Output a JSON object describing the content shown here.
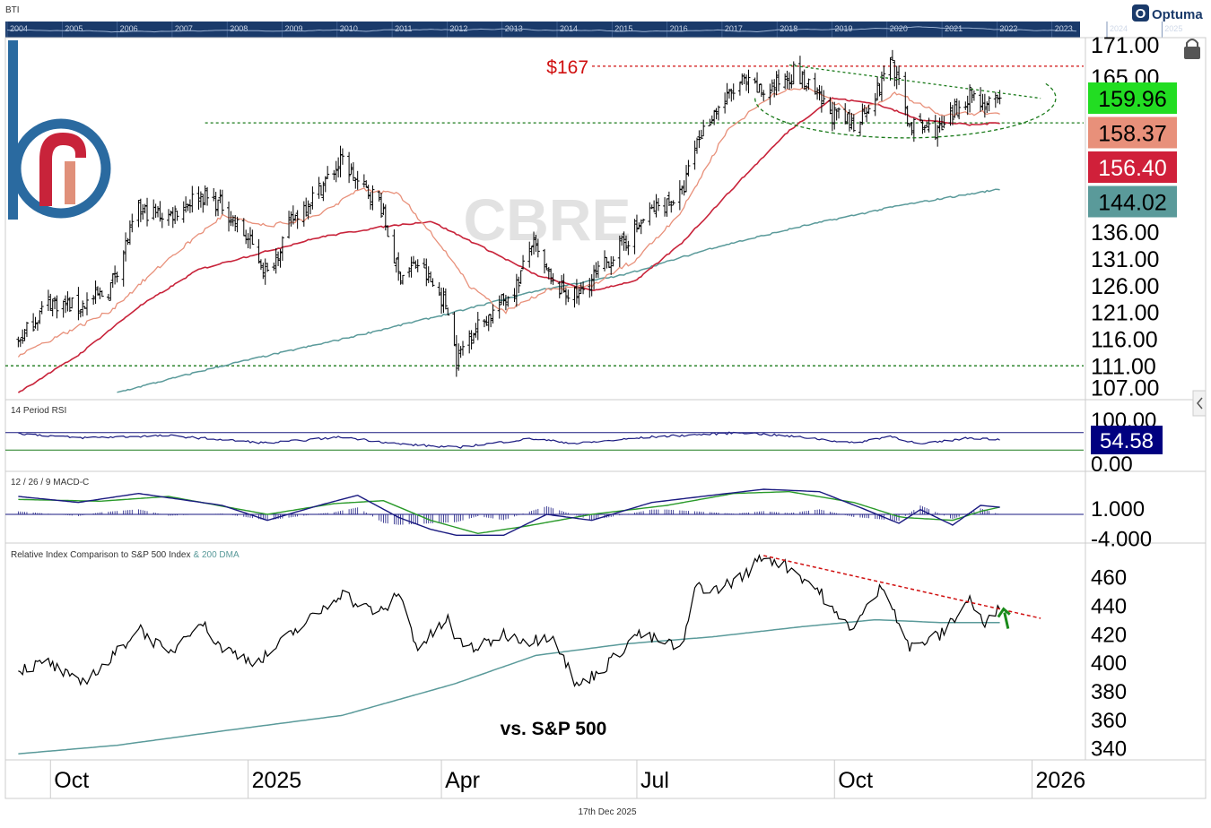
{
  "header": {
    "ticker_code": "BTI",
    "brand": "Optuma"
  },
  "timeline": {
    "years": [
      "2004",
      "2005",
      "2006",
      "2007",
      "2008",
      "2009",
      "2010",
      "2011",
      "2012",
      "2013",
      "2014",
      "2015",
      "2016",
      "2017",
      "2018",
      "2019",
      "2020",
      "2021",
      "2022",
      "2023",
      "2024",
      "2025"
    ]
  },
  "watermark": "CBRE",
  "footer": {
    "date": "17th Dec 2025"
  },
  "colors": {
    "price_bar": "#000000",
    "ma_fast": "#e8907a",
    "ma_mid": "#c8233a",
    "ma_slow": "#5a9a9a",
    "support_line": "#1a7a1a",
    "resistance_line": "#d01010",
    "rsi_line": "#1a1a80",
    "macd_line": "#1a1a80",
    "macd_signal": "#2a9a2a",
    "relative_line": "#000000",
    "relative_dma": "#5a9a9a",
    "arrow": "#1a8a1a",
    "timeline_bg": "#1a3a6a"
  },
  "chart_data": [
    {
      "panel": "price",
      "type": "ohlc",
      "title": "CBRE",
      "ylim": [
        105,
        172
      ],
      "yticks": [
        "171.00",
        "165.00",
        "136.00",
        "131.00",
        "126.00",
        "121.00",
        "116.00",
        "111.00",
        "107.00"
      ],
      "ytick_values": [
        171,
        165,
        136,
        131,
        126,
        121,
        116,
        111,
        107
      ],
      "price_labels": [
        {
          "value": "159.96",
          "bg": "#22dd22",
          "fg": "#000000"
        },
        {
          "value": "158.37",
          "bg": "#e8907a",
          "fg": "#000000"
        },
        {
          "value": "156.40",
          "bg": "#d0203a",
          "fg": "#ffffff"
        },
        {
          "value": "144.02",
          "bg": "#5a9a9a",
          "fg": "#000000"
        }
      ],
      "close_anchors": [
        [
          "2024-09-16",
          115.5
        ],
        [
          "2024-09-30",
          123
        ],
        [
          "2024-10-14",
          122
        ],
        [
          "2024-10-28",
          125
        ],
        [
          "2024-11-11",
          140
        ],
        [
          "2024-11-25",
          139
        ],
        [
          "2024-12-09",
          143
        ],
        [
          "2024-12-20",
          141
        ],
        [
          "2025-01-02",
          134
        ],
        [
          "2025-01-10",
          128
        ],
        [
          "2025-01-21",
          138
        ],
        [
          "2025-02-03",
          144
        ],
        [
          "2025-02-14",
          149.5
        ],
        [
          "2025-02-21",
          145
        ],
        [
          "2025-03-03",
          142
        ],
        [
          "2025-03-12",
          128
        ],
        [
          "2025-03-21",
          130
        ],
        [
          "2025-04-04",
          122
        ],
        [
          "2025-04-08",
          112
        ],
        [
          "2025-04-14",
          117
        ],
        [
          "2025-04-25",
          121
        ],
        [
          "2025-05-06",
          126
        ],
        [
          "2025-05-13",
          134
        ],
        [
          "2025-05-23",
          126
        ],
        [
          "2025-06-03",
          124
        ],
        [
          "2025-06-12",
          128
        ],
        [
          "2025-06-25",
          134
        ],
        [
          "2025-07-08",
          140
        ],
        [
          "2025-07-22",
          143
        ],
        [
          "2025-07-29",
          153
        ],
        [
          "2025-08-05",
          158
        ],
        [
          "2025-08-19",
          164
        ],
        [
          "2025-08-29",
          162
        ],
        [
          "2025-09-12",
          166
        ],
        [
          "2025-09-19",
          163
        ],
        [
          "2025-09-30",
          158
        ],
        [
          "2025-10-10",
          156
        ],
        [
          "2025-10-22",
          163
        ],
        [
          "2025-10-27",
          169
        ],
        [
          "2025-11-05",
          156
        ],
        [
          "2025-11-20",
          155
        ],
        [
          "2025-12-03",
          162
        ],
        [
          "2025-12-10",
          160
        ],
        [
          "2025-12-17",
          159.96
        ]
      ],
      "ma_fast_anchors": [
        [
          "2024-09-16",
          113
        ],
        [
          "2024-10-28",
          121
        ],
        [
          "2024-11-25",
          131
        ],
        [
          "2024-12-20",
          139
        ],
        [
          "2025-01-10",
          137
        ],
        [
          "2025-02-03",
          139
        ],
        [
          "2025-02-21",
          144
        ],
        [
          "2025-03-12",
          143
        ],
        [
          "2025-03-27",
          136
        ],
        [
          "2025-04-14",
          126
        ],
        [
          "2025-04-30",
          121
        ],
        [
          "2025-05-20",
          125
        ],
        [
          "2025-06-10",
          126
        ],
        [
          "2025-07-01",
          131
        ],
        [
          "2025-07-22",
          140
        ],
        [
          "2025-08-12",
          155
        ],
        [
          "2025-09-03",
          162
        ],
        [
          "2025-09-19",
          163
        ],
        [
          "2025-10-10",
          158
        ],
        [
          "2025-10-30",
          162
        ],
        [
          "2025-11-20",
          158
        ],
        [
          "2025-12-17",
          158.37
        ]
      ],
      "ma_mid_anchors": [
        [
          "2024-09-16",
          106
        ],
        [
          "2024-10-14",
          113
        ],
        [
          "2024-11-11",
          122
        ],
        [
          "2024-12-09",
          129
        ],
        [
          "2025-01-06",
          132
        ],
        [
          "2025-02-03",
          135
        ],
        [
          "2025-03-05",
          137
        ],
        [
          "2025-03-27",
          138
        ],
        [
          "2025-04-21",
          133
        ],
        [
          "2025-05-15",
          128
        ],
        [
          "2025-06-10",
          125
        ],
        [
          "2025-07-01",
          127
        ],
        [
          "2025-07-22",
          134
        ],
        [
          "2025-08-19",
          146
        ],
        [
          "2025-09-10",
          155
        ],
        [
          "2025-09-30",
          161
        ],
        [
          "2025-10-20",
          160
        ],
        [
          "2025-11-10",
          157
        ],
        [
          "2025-12-03",
          156
        ],
        [
          "2025-12-17",
          156.4
        ]
      ],
      "ma_slow_anchors": [
        [
          "2024-11-01",
          106
        ],
        [
          "2024-12-20",
          111
        ],
        [
          "2025-02-14",
          116
        ],
        [
          "2025-04-07",
          121
        ],
        [
          "2025-05-15",
          125
        ],
        [
          "2025-06-25",
          128
        ],
        [
          "2025-08-05",
          133
        ],
        [
          "2025-09-15",
          137
        ],
        [
          "2025-11-01",
          141
        ],
        [
          "2025-12-17",
          144.02
        ]
      ],
      "annotations": {
        "resistance": {
          "value": 167,
          "label": "$167"
        },
        "support_upper": 156.4,
        "support_lower": 111,
        "downtrend": {
          "from": [
            "2025-09-10",
            167.2
          ],
          "to": [
            "2026-01-05",
            161
          ]
        },
        "cup_ellipse": {
          "center_date": "2025-11-03",
          "center_value": 161,
          "half_width_days": 70,
          "top_value": 168,
          "bottom_value": 153.2
        }
      }
    },
    {
      "panel": "rsi",
      "type": "line",
      "title": "14 Period RSI",
      "ylim": [
        0,
        100
      ],
      "yticks": [
        "100.00",
        "0.00"
      ],
      "ytick_values": [
        100,
        0
      ],
      "bands": [
        70,
        30
      ],
      "latest": "54.58",
      "anchors": [
        [
          "2024-09-16",
          68
        ],
        [
          "2024-10-14",
          58
        ],
        [
          "2024-11-25",
          63
        ],
        [
          "2025-01-10",
          46
        ],
        [
          "2025-02-14",
          60
        ],
        [
          "2025-03-12",
          44
        ],
        [
          "2025-04-08",
          36
        ],
        [
          "2025-05-13",
          56
        ],
        [
          "2025-06-03",
          45
        ],
        [
          "2025-07-08",
          60
        ],
        [
          "2025-08-19",
          70
        ],
        [
          "2025-09-19",
          58
        ],
        [
          "2025-10-10",
          46
        ],
        [
          "2025-10-27",
          62
        ],
        [
          "2025-11-10",
          43
        ],
        [
          "2025-12-03",
          58
        ],
        [
          "2025-12-17",
          54.58
        ]
      ]
    },
    {
      "panel": "macd",
      "type": "line+histogram",
      "title": "12 / 26 / 9 MACD-C",
      "ylim": [
        -4.5,
        4.5
      ],
      "yticks": [
        "1.000",
        "-4.000"
      ],
      "ytick_values": [
        1,
        -4
      ],
      "macd_anchors": [
        [
          "2024-09-16",
          3
        ],
        [
          "2024-10-14",
          2
        ],
        [
          "2024-11-11",
          3.5
        ],
        [
          "2024-12-20",
          1.5
        ],
        [
          "2025-01-10",
          -1
        ],
        [
          "2025-02-03",
          1.5
        ],
        [
          "2025-02-21",
          3.2
        ],
        [
          "2025-03-12",
          -0.5
        ],
        [
          "2025-03-27",
          -2.5
        ],
        [
          "2025-04-08",
          -3.5
        ],
        [
          "2025-04-30",
          -3.5
        ],
        [
          "2025-05-20",
          0
        ],
        [
          "2025-06-10",
          -1
        ],
        [
          "2025-07-08",
          2
        ],
        [
          "2025-08-05",
          3.2
        ],
        [
          "2025-08-29",
          4.2
        ],
        [
          "2025-09-24",
          3.8
        ],
        [
          "2025-10-14",
          1
        ],
        [
          "2025-10-31",
          -1.5
        ],
        [
          "2025-11-10",
          0.8
        ],
        [
          "2025-11-25",
          -1.8
        ],
        [
          "2025-12-08",
          1.5
        ],
        [
          "2025-12-17",
          1.2
        ]
      ],
      "signal_anchors": [
        [
          "2024-09-16",
          2.5
        ],
        [
          "2024-10-24",
          2.2
        ],
        [
          "2024-11-25",
          3
        ],
        [
          "2025-01-10",
          0
        ],
        [
          "2025-02-10",
          1.8
        ],
        [
          "2025-03-05",
          2.3
        ],
        [
          "2025-03-27",
          -1
        ],
        [
          "2025-04-18",
          -3.2
        ],
        [
          "2025-05-10",
          -2
        ],
        [
          "2025-06-10",
          0
        ],
        [
          "2025-07-15",
          1.5
        ],
        [
          "2025-08-15",
          3.5
        ],
        [
          "2025-09-10",
          3.8
        ],
        [
          "2025-10-10",
          2
        ],
        [
          "2025-11-01",
          -0.5
        ],
        [
          "2025-11-25",
          -1
        ],
        [
          "2025-12-08",
          0.5
        ],
        [
          "2025-12-17",
          1.2
        ]
      ]
    },
    {
      "panel": "relative",
      "type": "line",
      "title": "Relative Index Comparison to S&P 500 Index",
      "subtitle": "& 200 DMA",
      "label": "vs. S&P 500",
      "ylim": [
        333,
        480
      ],
      "yticks": [
        "460",
        "440",
        "420",
        "400",
        "380",
        "360",
        "340"
      ],
      "ytick_values": [
        460,
        440,
        420,
        400,
        380,
        360,
        340
      ],
      "anchors": [
        [
          "2024-09-16",
          395
        ],
        [
          "2024-09-30",
          400
        ],
        [
          "2024-10-14",
          385
        ],
        [
          "2024-10-28",
          400
        ],
        [
          "2024-11-11",
          425
        ],
        [
          "2024-11-25",
          405
        ],
        [
          "2024-12-09",
          430
        ],
        [
          "2024-12-20",
          410
        ],
        [
          "2025-01-06",
          400
        ],
        [
          "2025-01-21",
          420
        ],
        [
          "2025-02-03",
          435
        ],
        [
          "2025-02-14",
          450
        ],
        [
          "2025-02-21",
          440
        ],
        [
          "2025-03-05",
          435
        ],
        [
          "2025-03-12",
          450
        ],
        [
          "2025-03-21",
          410
        ],
        [
          "2025-04-04",
          430
        ],
        [
          "2025-04-08",
          415
        ],
        [
          "2025-04-18",
          410
        ],
        [
          "2025-04-30",
          420
        ],
        [
          "2025-05-13",
          415
        ],
        [
          "2025-05-23",
          420
        ],
        [
          "2025-06-03",
          383
        ],
        [
          "2025-06-17",
          398
        ],
        [
          "2025-07-01",
          420
        ],
        [
          "2025-07-22",
          410
        ],
        [
          "2025-07-29",
          455
        ],
        [
          "2025-08-05",
          450
        ],
        [
          "2025-08-19",
          460
        ],
        [
          "2025-08-29",
          475
        ],
        [
          "2025-09-12",
          465
        ],
        [
          "2025-09-24",
          450
        ],
        [
          "2025-10-03",
          430
        ],
        [
          "2025-10-10",
          425
        ],
        [
          "2025-10-24",
          455
        ],
        [
          "2025-11-05",
          410
        ],
        [
          "2025-11-20",
          420
        ],
        [
          "2025-12-03",
          445
        ],
        [
          "2025-12-10",
          425
        ],
        [
          "2025-12-17",
          440
        ]
      ],
      "dma_anchors": [
        [
          "2024-09-16",
          336
        ],
        [
          "2024-11-01",
          342
        ],
        [
          "2024-12-20",
          352
        ],
        [
          "2025-02-14",
          363
        ],
        [
          "2025-04-07",
          385
        ],
        [
          "2025-05-15",
          405
        ],
        [
          "2025-06-25",
          413
        ],
        [
          "2025-08-05",
          418
        ],
        [
          "2025-09-15",
          425
        ],
        [
          "2025-10-20",
          430
        ],
        [
          "2025-11-20",
          428
        ],
        [
          "2025-12-17",
          428
        ]
      ],
      "downtrend": {
        "from": [
          "2025-08-29",
          475
        ],
        "to": [
          "2026-01-05",
          431
        ]
      }
    }
  ],
  "x_axis": {
    "range": [
      "2024-09-10",
      "2026-01-25"
    ],
    "ticks": [
      {
        "label": "Oct",
        "date": "2024-10-01"
      },
      {
        "label": "2025",
        "date": "2025-01-01"
      },
      {
        "label": "Apr",
        "date": "2025-04-01"
      },
      {
        "label": "Jul",
        "date": "2025-07-01"
      },
      {
        "label": "Oct",
        "date": "2025-10-01"
      },
      {
        "label": "2026",
        "date": "2026-01-01"
      }
    ]
  }
}
